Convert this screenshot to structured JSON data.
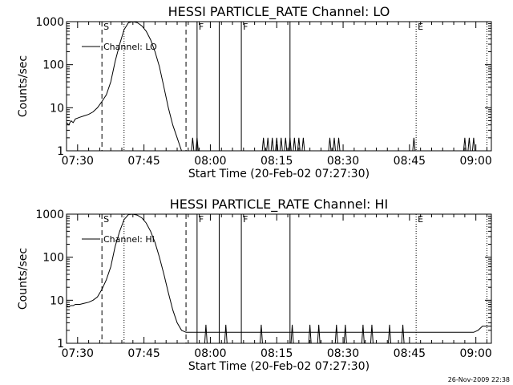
{
  "chart_data": [
    {
      "type": "line",
      "title": "HESSI PARTICLE_RATE Channel: LO",
      "xlabel": "Start Time (20-Feb-02 07:27:30)",
      "ylabel": "Counts/sec",
      "yscale": "log",
      "ylim": [
        1,
        1000
      ],
      "xlim_minutes_after_0727_30": [
        0,
        96
      ],
      "x_tick_labels": [
        "07:30",
        "07:45",
        "08:00",
        "08:15",
        "08:30",
        "08:45",
        "09:00"
      ],
      "x_tick_minutes": [
        2.5,
        17.5,
        32.5,
        47.5,
        62.5,
        77.5,
        92.5
      ],
      "y_tick_labels": [
        "1",
        "10",
        "100",
        "1000"
      ],
      "y_tick_values": [
        1,
        10,
        100,
        1000
      ],
      "legend": {
        "placement": "top-left",
        "entries": [
          "Channel: LO"
        ]
      },
      "series": [
        {
          "name": "Channel: LO",
          "x": [
            0,
            0.5,
            1,
            1.5,
            2,
            3,
            4,
            5,
            6,
            7,
            8,
            9,
            10,
            11,
            12,
            13,
            14,
            15,
            16,
            17,
            18,
            19,
            20,
            21,
            22,
            23,
            24,
            25,
            26,
            27,
            28,
            29,
            30
          ],
          "y": [
            4.5,
            4.0,
            5.0,
            4.5,
            5.5,
            6.0,
            6.5,
            7.0,
            8.0,
            10.0,
            14.0,
            20.0,
            40.0,
            120.0,
            300.0,
            650.0,
            950.0,
            1000.0,
            950.0,
            800.0,
            600.0,
            380.0,
            200.0,
            90.0,
            30.0,
            10.0,
            4.0,
            2.0,
            1.0,
            1.0,
            1.0,
            1.0,
            1.0
          ]
        }
      ],
      "burst_x": [
        28.5,
        29.5,
        44.5,
        45.5,
        46.5,
        47.5,
        48.5,
        49.5,
        50.5,
        51.5,
        52.5,
        53.5,
        59.5,
        60.5,
        61.5,
        78.5,
        90,
        91,
        92
      ],
      "burst_y": 2.0,
      "vertical_markers": [
        {
          "x": 8,
          "style": "dashed",
          "label": "S"
        },
        {
          "x": 13,
          "style": "dotted",
          "label": ""
        },
        {
          "x": 27,
          "style": "dashed",
          "label": ""
        },
        {
          "x": 29.5,
          "style": "solid",
          "label": "F"
        },
        {
          "x": 34.5,
          "style": "solid",
          "label": ""
        },
        {
          "x": 39.5,
          "style": "solid",
          "label": "F"
        },
        {
          "x": 50.5,
          "style": "solid",
          "label": ""
        },
        {
          "x": 79,
          "style": "dotted",
          "label": "E"
        },
        {
          "x": 95,
          "style": "dotted",
          "label": ""
        }
      ]
    },
    {
      "type": "line",
      "title": "HESSI PARTICLE_RATE Channel: HI",
      "xlabel": "Start Time (20-Feb-02 07:27:30)",
      "ylabel": "Counts/sec",
      "yscale": "log",
      "ylim": [
        1,
        1000
      ],
      "xlim_minutes_after_0727_30": [
        0,
        96
      ],
      "x_tick_labels": [
        "07:30",
        "07:45",
        "08:00",
        "08:15",
        "08:30",
        "08:45",
        "09:00"
      ],
      "x_tick_minutes": [
        2.5,
        17.5,
        32.5,
        47.5,
        62.5,
        77.5,
        92.5
      ],
      "y_tick_labels": [
        "1",
        "10",
        "100",
        "1000"
      ],
      "y_tick_values": [
        1,
        10,
        100,
        1000
      ],
      "legend": {
        "placement": "top-left",
        "entries": [
          "Channel: HI"
        ]
      },
      "series": [
        {
          "name": "Channel: HI",
          "x": [
            0,
            0.5,
            1,
            1.5,
            2,
            3,
            4,
            5,
            6,
            7,
            8,
            9,
            10,
            11,
            12,
            13,
            14,
            15,
            16,
            17,
            18,
            19,
            20,
            21,
            22,
            23,
            24,
            25,
            26,
            27,
            28,
            29,
            30,
            40,
            42,
            44,
            46,
            50,
            60,
            70,
            75,
            80,
            85,
            90,
            91,
            92,
            93,
            94,
            96
          ],
          "y": [
            7.5,
            7.0,
            7.5,
            7.5,
            8.0,
            8.0,
            8.5,
            9.0,
            10.0,
            12.0,
            18.0,
            30.0,
            60.0,
            180.0,
            400.0,
            750.0,
            980.0,
            1000.0,
            950.0,
            820.0,
            620.0,
            400.0,
            220.0,
            100.0,
            40.0,
            15.0,
            6.0,
            3.0,
            2.0,
            1.8,
            1.8,
            1.8,
            1.8,
            1.8,
            1.8,
            1.8,
            1.8,
            1.8,
            1.8,
            1.8,
            1.8,
            1.8,
            1.8,
            1.8,
            1.8,
            1.8,
            2.0,
            2.5,
            2.5
          ]
        }
      ],
      "burst_x": [
        31.5,
        36,
        44,
        51,
        55,
        57,
        61,
        63,
        67,
        69,
        73,
        76
      ],
      "burst_y": 2.7,
      "vertical_markers": [
        {
          "x": 8,
          "style": "dashed",
          "label": "S"
        },
        {
          "x": 13,
          "style": "dotted",
          "label": ""
        },
        {
          "x": 27,
          "style": "dashed",
          "label": ""
        },
        {
          "x": 29.5,
          "style": "solid",
          "label": "F"
        },
        {
          "x": 34.5,
          "style": "solid",
          "label": ""
        },
        {
          "x": 39.5,
          "style": "solid",
          "label": "F"
        },
        {
          "x": 50.5,
          "style": "solid",
          "label": ""
        },
        {
          "x": 79,
          "style": "dotted",
          "label": "E"
        },
        {
          "x": 95,
          "style": "dotted",
          "label": ""
        }
      ]
    }
  ],
  "footer": {
    "timestamp": "26-Nov-2009 22:38"
  },
  "colors": {
    "line": "#000000",
    "background": "#ffffff"
  }
}
